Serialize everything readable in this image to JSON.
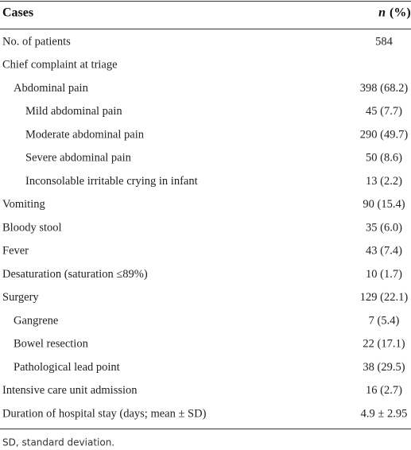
{
  "table": {
    "header": {
      "cases": "Cases",
      "n": "n",
      "pct": "(%)"
    },
    "rows": [
      {
        "label": "No. of patients",
        "value": "584"
      },
      {
        "label": "Chief complaint at triage",
        "children": [
          {
            "label": "Abdominal pain",
            "value": "398 (68.2)",
            "children": [
              {
                "label": "Mild abdominal pain",
                "value": "45 (7.7)"
              },
              {
                "label": "Moderate abdominal pain",
                "value": "290 (49.7)"
              },
              {
                "label": "Severe abdominal pain",
                "value": "50 (8.6)"
              },
              {
                "label": "Inconsolable irritable crying in infant",
                "value": "13 (2.2)"
              }
            ]
          }
        ]
      },
      {
        "label": "Vomiting",
        "value": "90 (15.4)"
      },
      {
        "label": "Bloody stool",
        "value": "35 (6.0)"
      },
      {
        "label": "Fever",
        "value": "43 (7.4)"
      },
      {
        "label": "Desaturation (saturation ≤89%)",
        "value": "10 (1.7)"
      },
      {
        "label": "Surgery",
        "value": "129 (22.1)",
        "children": [
          {
            "label": "Gangrene",
            "value": "7 (5.4)"
          },
          {
            "label": "Bowel resection",
            "value": "22 (17.1)"
          },
          {
            "label": "Pathological lead point",
            "value": "38 (29.5)"
          }
        ]
      },
      {
        "label": "Intensive care unit admission",
        "value": "16 (2.7)"
      },
      {
        "label": "Duration of hospital stay (days; mean ± SD)",
        "value": "4.9 ± 2.95"
      }
    ],
    "footnote": "SD, standard deviation."
  }
}
